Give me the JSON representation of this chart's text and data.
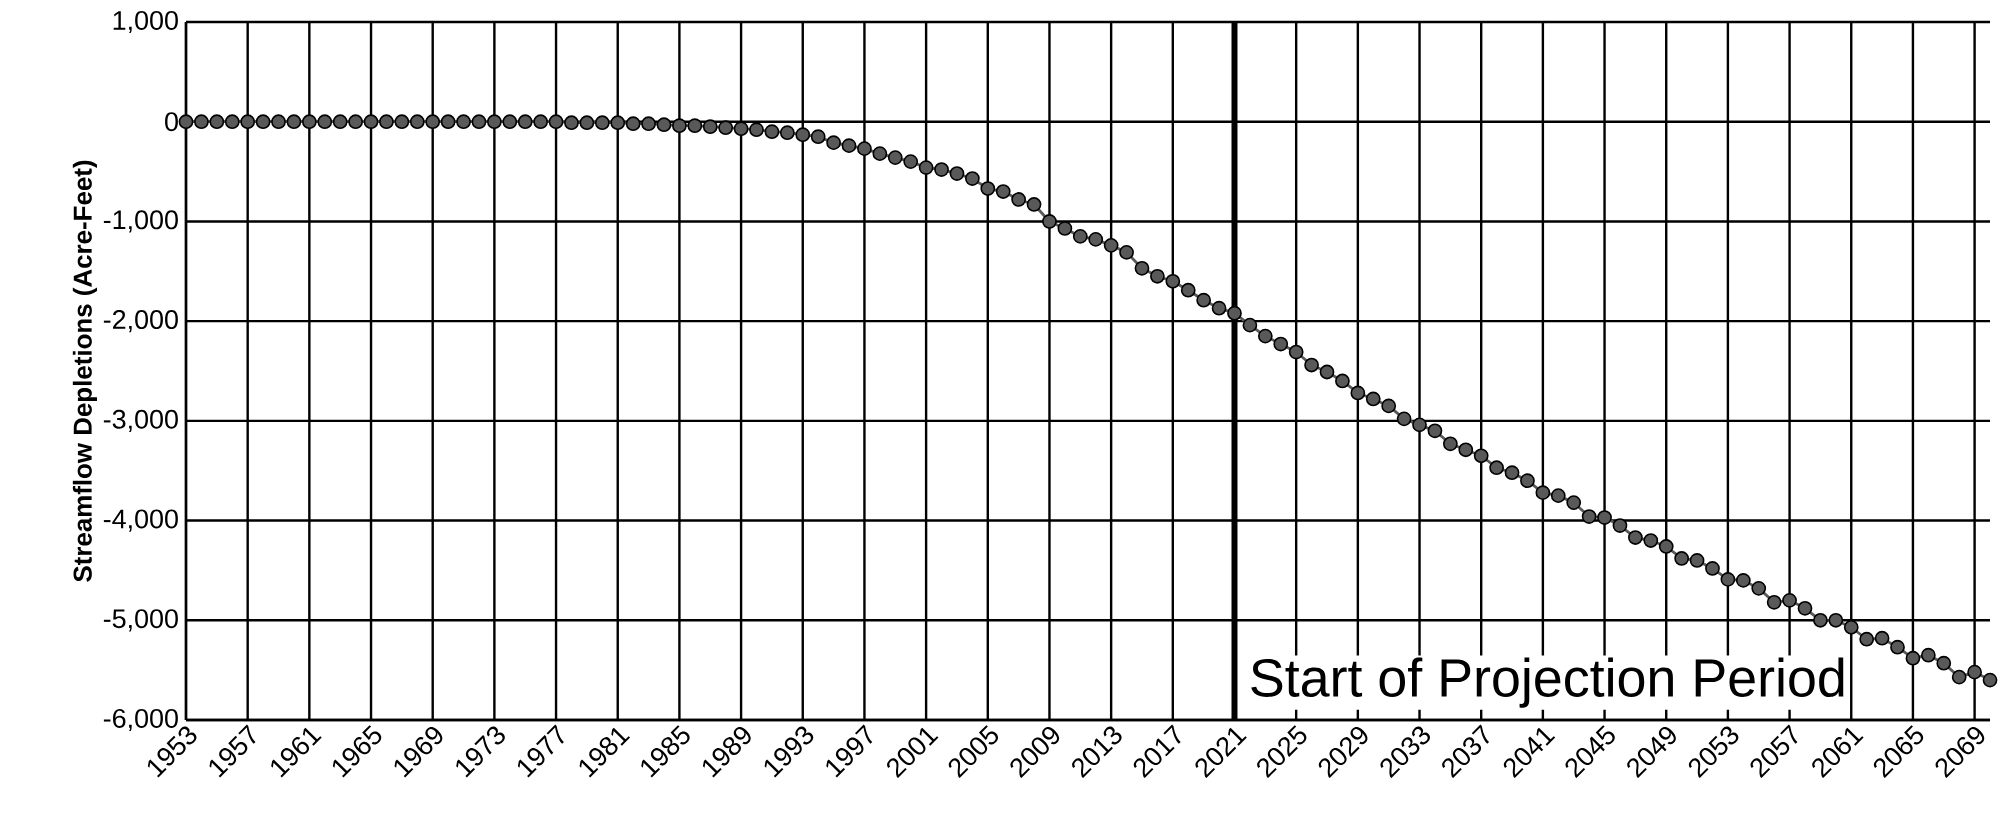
{
  "chart_data": {
    "type": "line",
    "ylabel": "Streamflow Depletions (Acre-Feet)",
    "x": [
      1953,
      1954,
      1955,
      1956,
      1957,
      1958,
      1959,
      1960,
      1961,
      1962,
      1963,
      1964,
      1965,
      1966,
      1967,
      1968,
      1969,
      1970,
      1971,
      1972,
      1973,
      1974,
      1975,
      1976,
      1977,
      1978,
      1979,
      1980,
      1981,
      1982,
      1983,
      1984,
      1985,
      1986,
      1987,
      1988,
      1989,
      1990,
      1991,
      1992,
      1993,
      1994,
      1995,
      1996,
      1997,
      1998,
      1999,
      2000,
      2001,
      2002,
      2003,
      2004,
      2005,
      2006,
      2007,
      2008,
      2009,
      2010,
      2011,
      2012,
      2013,
      2014,
      2015,
      2016,
      2017,
      2018,
      2019,
      2020,
      2021,
      2022,
      2023,
      2024,
      2025,
      2026,
      2027,
      2028,
      2029,
      2030,
      2031,
      2032,
      2033,
      2034,
      2035,
      2036,
      2037,
      2038,
      2039,
      2040,
      2041,
      2042,
      2043,
      2044,
      2045,
      2046,
      2047,
      2048,
      2049,
      2050,
      2051,
      2052,
      2053,
      2054,
      2055,
      2056,
      2057,
      2058,
      2059,
      2060,
      2061,
      2062,
      2063,
      2064,
      2065,
      2066,
      2067,
      2068,
      2069,
      2070
    ],
    "series": [
      {
        "color": "#595959",
        "values": [
          0,
          0,
          0,
          0,
          0,
          0,
          0,
          0,
          0,
          0,
          0,
          0,
          0,
          0,
          0,
          0,
          0,
          0,
          0,
          0,
          0,
          0,
          0,
          0,
          0,
          -10,
          -10,
          -10,
          -10,
          -20,
          -20,
          -30,
          -40,
          -40,
          -50,
          -60,
          -70,
          -80,
          -100,
          -110,
          -130,
          -150,
          -210,
          -240,
          -270,
          -320,
          -360,
          -400,
          -460,
          -480,
          -520,
          -570,
          -670,
          -700,
          -780,
          -830,
          -1000,
          -1070,
          -1150,
          -1180,
          -1240,
          -1310,
          -1470,
          -1550,
          -1600,
          -1690,
          -1790,
          -1870,
          -1920,
          -2040,
          -2150,
          -2230,
          -2310,
          -2440,
          -2510,
          -2600,
          -2720,
          -2780,
          -2850,
          -2980,
          -3040,
          -3100,
          -3230,
          -3290,
          -3350,
          -3470,
          -3520,
          -3600,
          -3720,
          -3750,
          -3820,
          -3960,
          -3970,
          -4050,
          -4170,
          -4200,
          -4260,
          -4380,
          -4400,
          -4480,
          -4590,
          -4600,
          -4680,
          -4820,
          -4800,
          -4880,
          -5000,
          -5000,
          -5070,
          -5190,
          -5180,
          -5270,
          -5380,
          -5350,
          -5430,
          -5570,
          -5520,
          -5600
        ]
      }
    ],
    "xlim": [
      1953,
      2070
    ],
    "xticks": [
      1953,
      1957,
      1961,
      1965,
      1969,
      1973,
      1977,
      1981,
      1985,
      1989,
      1993,
      1997,
      2001,
      2005,
      2009,
      2013,
      2017,
      2021,
      2025,
      2029,
      2033,
      2037,
      2041,
      2045,
      2049,
      2053,
      2057,
      2061,
      2065,
      2069
    ],
    "ylim": [
      -6000,
      1000
    ],
    "yticks": [
      {
        "value": 1000,
        "label": "1,000"
      },
      0,
      {
        "value": -1000,
        "label": "-1,000"
      },
      {
        "value": -2000,
        "label": "-2,000"
      },
      {
        "value": -3000,
        "label": "-3,000"
      },
      {
        "value": -4000,
        "label": "-4,000"
      },
      {
        "value": -5000,
        "label": "-5,000"
      },
      {
        "value": -6000,
        "label": "-6,000"
      }
    ],
    "ref_lines": [
      {
        "axis": "x",
        "value": 2021,
        "label": "Start of Projection Period",
        "color": "#000000"
      }
    ],
    "grid": true,
    "marker": "circle",
    "line_style": "solid"
  }
}
